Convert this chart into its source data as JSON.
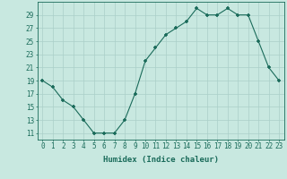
{
  "x": [
    0,
    1,
    2,
    3,
    4,
    5,
    6,
    7,
    8,
    9,
    10,
    11,
    12,
    13,
    14,
    15,
    16,
    17,
    18,
    19,
    20,
    21,
    22,
    23
  ],
  "y": [
    19,
    18,
    16,
    15,
    13,
    11,
    11,
    11,
    13,
    17,
    22,
    24,
    26,
    27,
    28,
    30,
    29,
    29,
    30,
    29,
    29,
    25,
    21,
    19
  ],
  "line_color": "#1a6b5a",
  "marker_color": "#1a6b5a",
  "bg_color": "#c8e8e0",
  "grid_color": "#aacfc8",
  "xlabel": "Humidex (Indice chaleur)",
  "yticks": [
    11,
    13,
    15,
    17,
    19,
    21,
    23,
    25,
    27,
    29
  ],
  "xticks": [
    0,
    1,
    2,
    3,
    4,
    5,
    6,
    7,
    8,
    9,
    10,
    11,
    12,
    13,
    14,
    15,
    16,
    17,
    18,
    19,
    20,
    21,
    22,
    23
  ],
  "xlim": [
    -0.5,
    23.5
  ],
  "ylim": [
    10,
    31
  ],
  "tick_color": "#1a6b5a",
  "label_fontsize": 6.5,
  "tick_fontsize": 5.5
}
